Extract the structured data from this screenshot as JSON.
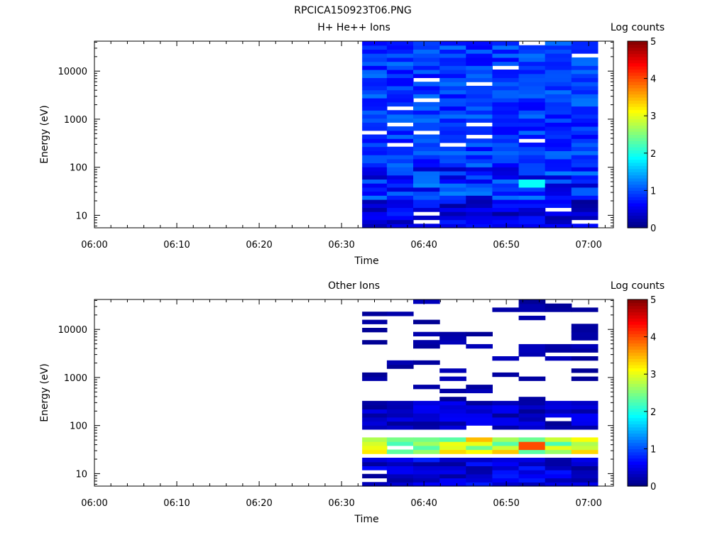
{
  "figure": {
    "title": "RPCICA150923T06.PNG"
  },
  "chart_data": [
    {
      "type": "heatmap",
      "title": "H+ He++ Ions",
      "xlabel": "Time",
      "ylabel": "Energy (eV)",
      "xlim_minutes": [
        0,
        63
      ],
      "x_ticks": [
        "06:00",
        "06:10",
        "06:20",
        "06:30",
        "06:40",
        "06:50",
        "07:00"
      ],
      "x_tick_minutes": [
        0,
        10,
        20,
        30,
        40,
        50,
        60
      ],
      "yscale": "log",
      "ylim": [
        5.5,
        42000
      ],
      "y_ticks": [
        "10",
        "100",
        "1000",
        "10000"
      ],
      "y_tick_values": [
        10,
        100,
        1000,
        10000
      ],
      "colorbar": {
        "label": "Log counts",
        "range": [
          0,
          5
        ],
        "ticks": [
          "0",
          "1",
          "2",
          "3",
          "4",
          "5"
        ]
      },
      "time_bins_minutes": [
        [
          32.5,
          35.5
        ],
        [
          35.5,
          38.7
        ],
        [
          38.7,
          41.9
        ],
        [
          41.9,
          45.1
        ],
        [
          45.1,
          48.3
        ],
        [
          48.3,
          51.5
        ],
        [
          51.5,
          54.7
        ],
        [
          54.7,
          57.9
        ],
        [
          57.9,
          61.1
        ]
      ],
      "log_counts_summary": [
        {
          "energy_range": [
            100,
            42000
          ],
          "typical_log_counts": [
            0.6,
            1.2
          ]
        },
        {
          "energy_range": [
            20,
            100
          ],
          "typical_log_counts": [
            0.3,
            1.3
          ]
        },
        {
          "energy_range": [
            35,
            55
          ],
          "time_bin": 6,
          "log_counts": 1.9
        },
        {
          "energy_range": [
            5.5,
            20
          ],
          "typical_log_counts": [
            0.1,
            0.8
          ]
        }
      ],
      "seed": 17
    },
    {
      "type": "heatmap",
      "title": "Other Ions",
      "xlabel": "Time",
      "ylabel": "Energy (eV)",
      "xlim_minutes": [
        0,
        63
      ],
      "x_ticks": [
        "06:00",
        "06:10",
        "06:20",
        "06:30",
        "06:40",
        "06:50",
        "07:00"
      ],
      "x_tick_minutes": [
        0,
        10,
        20,
        30,
        40,
        50,
        60
      ],
      "yscale": "log",
      "ylim": [
        5.5,
        42000
      ],
      "y_ticks": [
        "10",
        "100",
        "1000",
        "10000"
      ],
      "y_tick_values": [
        10,
        100,
        1000,
        10000
      ],
      "colorbar": {
        "label": "Log counts",
        "range": [
          0,
          5
        ],
        "ticks": [
          "0",
          "1",
          "2",
          "3",
          "4",
          "5"
        ]
      },
      "time_bins_minutes": [
        [
          32.5,
          35.5
        ],
        [
          35.5,
          38.7
        ],
        [
          38.7,
          41.9
        ],
        [
          41.9,
          45.1
        ],
        [
          45.1,
          48.3
        ],
        [
          48.3,
          51.5
        ],
        [
          51.5,
          54.7
        ],
        [
          54.7,
          57.9
        ],
        [
          57.9,
          61.1
        ]
      ],
      "log_counts_summary": [
        {
          "energy_range": [
            300,
            42000
          ],
          "typical_log_counts": [
            0.1,
            0.3
          ],
          "note_sparse": true
        },
        {
          "energy_range": [
            80,
            300
          ],
          "typical_log_counts": [
            0.1,
            0.6
          ]
        },
        {
          "energy_range": [
            25,
            60
          ],
          "typical_log_counts": [
            2.2,
            3.5
          ]
        },
        {
          "energy_range": [
            30,
            50
          ],
          "time_bin": 6,
          "log_counts": 4.0
        },
        {
          "energy_range": [
            5.5,
            20
          ],
          "typical_log_counts": [
            0.1,
            0.8
          ]
        }
      ],
      "seed": 91
    }
  ]
}
